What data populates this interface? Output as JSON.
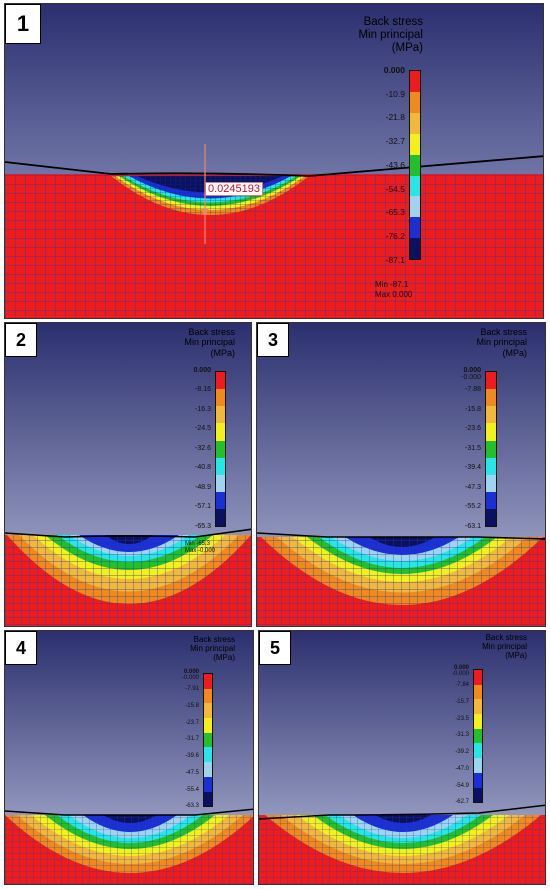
{
  "panels": [
    {
      "id": "1",
      "label": "1",
      "title_line1": "Back stress",
      "title_line2": "Min principal",
      "title_line3": "(MPa)",
      "legend_top_extra": "",
      "ticks": [
        "0.000",
        "-10.9",
        "-21.8",
        "-32.7",
        "-43.6",
        "-54.5",
        "-65.3",
        "-76.2",
        "-87.1"
      ],
      "min_label": "Min  -87.1",
      "max_label": "Max  0.000",
      "callout": "0.0245193"
    },
    {
      "id": "2",
      "label": "2",
      "title_line1": "Back stress",
      "title_line2": "Min principal",
      "title_line3": "(MPa)",
      "legend_top_extra": "",
      "ticks": [
        "0.000",
        "-8.16",
        "-16.3",
        "-24.5",
        "-32.6",
        "-40.8",
        "-48.9",
        "-57.1",
        "-65.3"
      ],
      "min_label": "Min  -65.3",
      "max_label": "Max  -0.000",
      "callout": ""
    },
    {
      "id": "3",
      "label": "3",
      "title_line1": "Back stress",
      "title_line2": "Min principal",
      "title_line3": "(MPa)",
      "legend_top_extra": "-0.000",
      "ticks": [
        "0.000",
        "-7.88",
        "-15.8",
        "-23.6",
        "-31.5",
        "-39.4",
        "-47.3",
        "-55.2",
        "-63.1"
      ],
      "min_label": "",
      "max_label": "",
      "callout": ""
    },
    {
      "id": "4",
      "label": "4",
      "title_line1": "Back stress",
      "title_line2": "Min principal",
      "title_line3": "(MPa)",
      "legend_top_extra": "-0.000",
      "ticks": [
        "0.000",
        "-7.91",
        "-15.8",
        "-23.7",
        "-31.7",
        "-39.6",
        "-47.5",
        "-55.4",
        "-63.3"
      ],
      "min_label": "",
      "max_label": "",
      "callout": ""
    },
    {
      "id": "5",
      "label": "5",
      "title_line1": "Back stress",
      "title_line2": "Min principal",
      "title_line3": "(MPa)",
      "legend_top_extra": "-0.000",
      "ticks": [
        "0.000",
        "-7.84",
        "-15.7",
        "-23.5",
        "-31.3",
        "-39.2",
        "-47.0",
        "-54.9",
        "-62.7"
      ],
      "min_label": "",
      "max_label": "",
      "callout": ""
    }
  ],
  "colors": {
    "bg_top": "#2b2f6e",
    "bg_bottom": "#b9bfdc",
    "mesh_base": "#ee1c1c",
    "mesh_line": "#2a3d9e",
    "scale": [
      "#ee1c1c",
      "#f08a1c",
      "#f2b83a",
      "#f3f01c",
      "#22c02a",
      "#26e6e6",
      "#9fd4f0",
      "#1a2fd6",
      "#0a1160"
    ]
  }
}
